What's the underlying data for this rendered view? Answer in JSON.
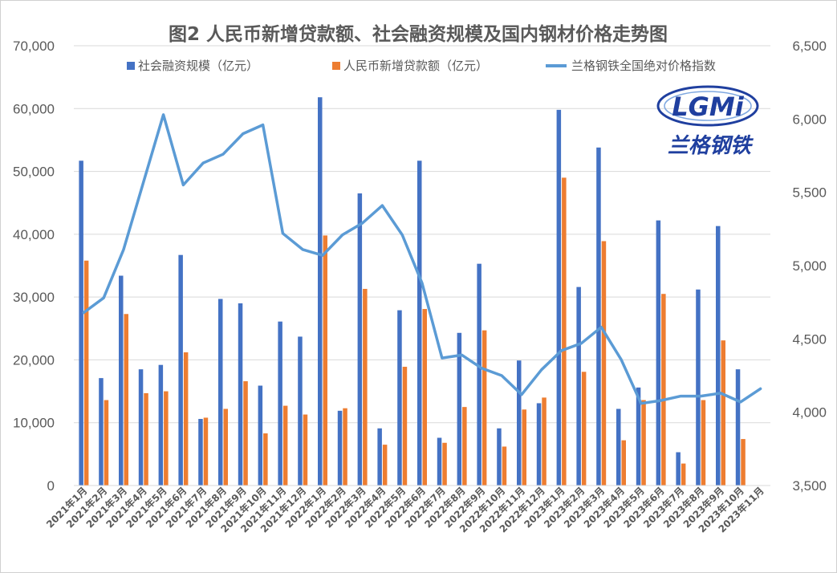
{
  "chart_data": {
    "type": "bar+line",
    "title": "图2 人民币新增贷款额、社会融资规模及国内钢材价格走势图",
    "categories": [
      "2021年1月",
      "2021年2月",
      "2021年3月",
      "2021年4月",
      "2021年5月",
      "2021年6月",
      "2021年7月",
      "2021年8月",
      "2021年9月",
      "2021年10月",
      "2021年11月",
      "2021年12月",
      "2022年1月",
      "2022年2月",
      "2022年3月",
      "2022年4月",
      "2022年5月",
      "2022年6月",
      "2022年7月",
      "2022年8月",
      "2022年9月",
      "2022年10月",
      "2022年11月",
      "2022年12月",
      "2023年1月",
      "2023年2月",
      "2023年3月",
      "2023年4月",
      "2023年5月",
      "2023年6月",
      "2023年7月",
      "2023年8月",
      "2023年9月",
      "2023年10月",
      "2023年11月"
    ],
    "series": [
      {
        "name": "社会融资规模（亿元）",
        "axis": "left",
        "kind": "bar",
        "color": "#4472C4",
        "values": [
          51700,
          17100,
          33400,
          18500,
          19200,
          36700,
          10600,
          29700,
          29000,
          15900,
          26100,
          23700,
          61800,
          11900,
          46500,
          9100,
          27900,
          51700,
          7600,
          24300,
          35300,
          9100,
          19900,
          13100,
          59800,
          31600,
          53800,
          12200,
          15600,
          42200,
          5300,
          31200,
          41300,
          18500,
          null
        ]
      },
      {
        "name": "人民币新增贷款额（亿元）",
        "axis": "right_hidden",
        "kind": "bar",
        "color": "#ED7D31",
        "values": [
          35800,
          13600,
          27300,
          14700,
          15000,
          21200,
          10800,
          12200,
          16600,
          8300,
          12700,
          11300,
          39800,
          12300,
          31300,
          6500,
          18900,
          28100,
          6800,
          12500,
          24700,
          6200,
          12100,
          14000,
          49000,
          18100,
          38900,
          7200,
          13600,
          30500,
          3500,
          13600,
          23100,
          7400,
          null
        ]
      },
      {
        "name": "兰格钢铁全国绝对价格指数",
        "axis": "right",
        "kind": "line",
        "color": "#5B9BD5",
        "values": [
          4680,
          4780,
          5110,
          5570,
          6030,
          5550,
          5700,
          5760,
          5900,
          5960,
          5220,
          5110,
          5070,
          5210,
          5290,
          5410,
          5210,
          4880,
          4370,
          4390,
          4300,
          4250,
          4120,
          4290,
          4420,
          4470,
          4580,
          4360,
          4060,
          4080,
          4110,
          4110,
          4130,
          4070,
          4160
        ]
      }
    ],
    "left_axis": {
      "min": 0,
      "max": 70000,
      "ticks": [
        0,
        10000,
        20000,
        30000,
        40000,
        50000,
        60000,
        70000
      ],
      "tick_labels": [
        "0",
        "10,000",
        "20,000",
        "30,000",
        "40,000",
        "50,000",
        "60,000",
        "70,000"
      ]
    },
    "right_axis": {
      "min": 3500,
      "max": 6500,
      "ticks": [
        3500,
        4000,
        4500,
        5000,
        5500,
        6000,
        6500
      ],
      "tick_labels": [
        "3,500",
        "4,000",
        "4,500",
        "5,000",
        "5,500",
        "6,000",
        "6,500"
      ]
    },
    "grid": true,
    "legend_position": "top"
  },
  "logo": {
    "text": "LGMi",
    "caption": "兰格钢铁",
    "primary_color": "#1F3F9F",
    "caption_color": "#1F3F9F"
  }
}
